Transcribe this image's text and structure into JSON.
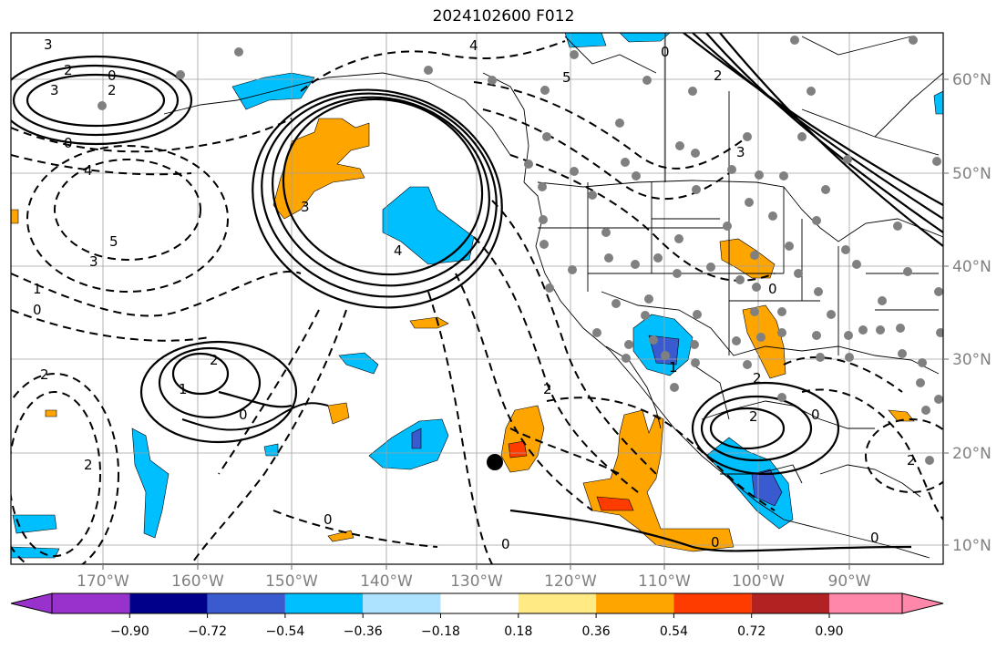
{
  "title": "2024102600 F012",
  "map": {
    "lon_labels": [
      "170°W",
      "160°W",
      "150°W",
      "140°W",
      "130°W",
      "120°W",
      "110°W",
      "100°W",
      "90°W"
    ],
    "lat_labels": [
      "60°N",
      "50°N",
      "40°N",
      "30°N",
      "20°N",
      "10°N"
    ],
    "contour_labels": [
      "3",
      "2",
      "1",
      "0",
      "3",
      "2",
      "0",
      "4",
      "5",
      "3",
      "1",
      "0",
      "2",
      "1",
      "0",
      "2",
      "2",
      "0",
      "2",
      "0",
      "3",
      "4",
      "5",
      "4",
      "3",
      "2",
      "0",
      "1",
      "2",
      "2",
      "0",
      "0",
      "0",
      "2",
      "0"
    ],
    "marker": "storm-center"
  },
  "colorbar": {
    "ticks": [
      "−0.90",
      "−0.72",
      "−0.54",
      "−0.36",
      "−0.18",
      "0.18",
      "0.36",
      "0.54",
      "0.72",
      "0.90"
    ],
    "colors": [
      "#9932cc",
      "#00008b",
      "#3a5bcf",
      "#00bfff",
      "#aee3ff",
      "#ffffff",
      "#ffea84",
      "#ffa500",
      "#ff3c00",
      "#b22222",
      "#ff88aa"
    ]
  }
}
